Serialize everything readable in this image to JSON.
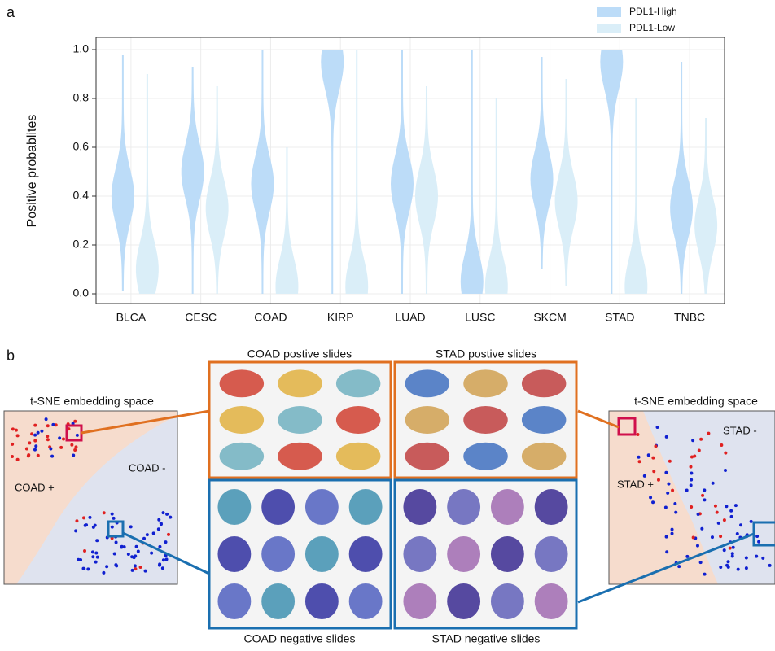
{
  "panel_labels": [
    "a",
    "b"
  ],
  "chart_data": {
    "type": "violin",
    "ylabel": "Positive probablites",
    "categories": [
      "BLCA",
      "CESC",
      "COAD",
      "KIRP",
      "LUAD",
      "LUSC",
      "SKCM",
      "STAD",
      "TNBC"
    ],
    "series": [
      {
        "name": "PDL1-High",
        "color": "#bcdcf8",
        "min": [
          0.01,
          0.0,
          0.0,
          0.0,
          0.0,
          0.0,
          0.1,
          0.0,
          0.0
        ],
        "max": [
          0.98,
          0.93,
          1.0,
          1.0,
          1.0,
          1.0,
          0.97,
          1.0,
          0.95
        ],
        "peak": [
          0.4,
          0.5,
          0.45,
          0.95,
          0.45,
          0.05,
          0.47,
          0.95,
          0.35
        ]
      },
      {
        "name": "PDL1-Low",
        "color": "#daeef8",
        "min": [
          0.0,
          0.0,
          0.0,
          0.0,
          0.0,
          0.0,
          0.03,
          0.0,
          0.0
        ],
        "max": [
          0.9,
          0.85,
          0.6,
          1.0,
          0.85,
          0.8,
          0.88,
          0.8,
          0.72
        ],
        "peak": [
          0.1,
          0.35,
          0.03,
          0.03,
          0.4,
          0.03,
          0.38,
          0.03,
          0.28
        ]
      }
    ],
    "ylim": [
      -0.04,
      1.05
    ],
    "yticks": [
      {
        "value": 0,
        "label": "0.0"
      },
      {
        "value": 0.2,
        "label": "0.2"
      },
      {
        "value": 0.4,
        "label": "0.4"
      },
      {
        "value": 0.6,
        "label": "0.6"
      },
      {
        "value": 0.8,
        "label": "0.8"
      },
      {
        "value": 1,
        "label": "1.0"
      }
    ],
    "grid": true,
    "legend": "top-right"
  },
  "diagram": {
    "left_title": "t-SNE embedding space",
    "left_pos": "COAD +",
    "left_neg": "COAD -",
    "right_title": "t-SNE embedding space",
    "right_pos": "STAD +",
    "right_neg": "STAD -",
    "coad_pos": "COAD postive slides",
    "stad_pos": "STAD postive slides",
    "coad_neg": "COAD negative slides",
    "stad_neg": "STAD negative slides"
  }
}
